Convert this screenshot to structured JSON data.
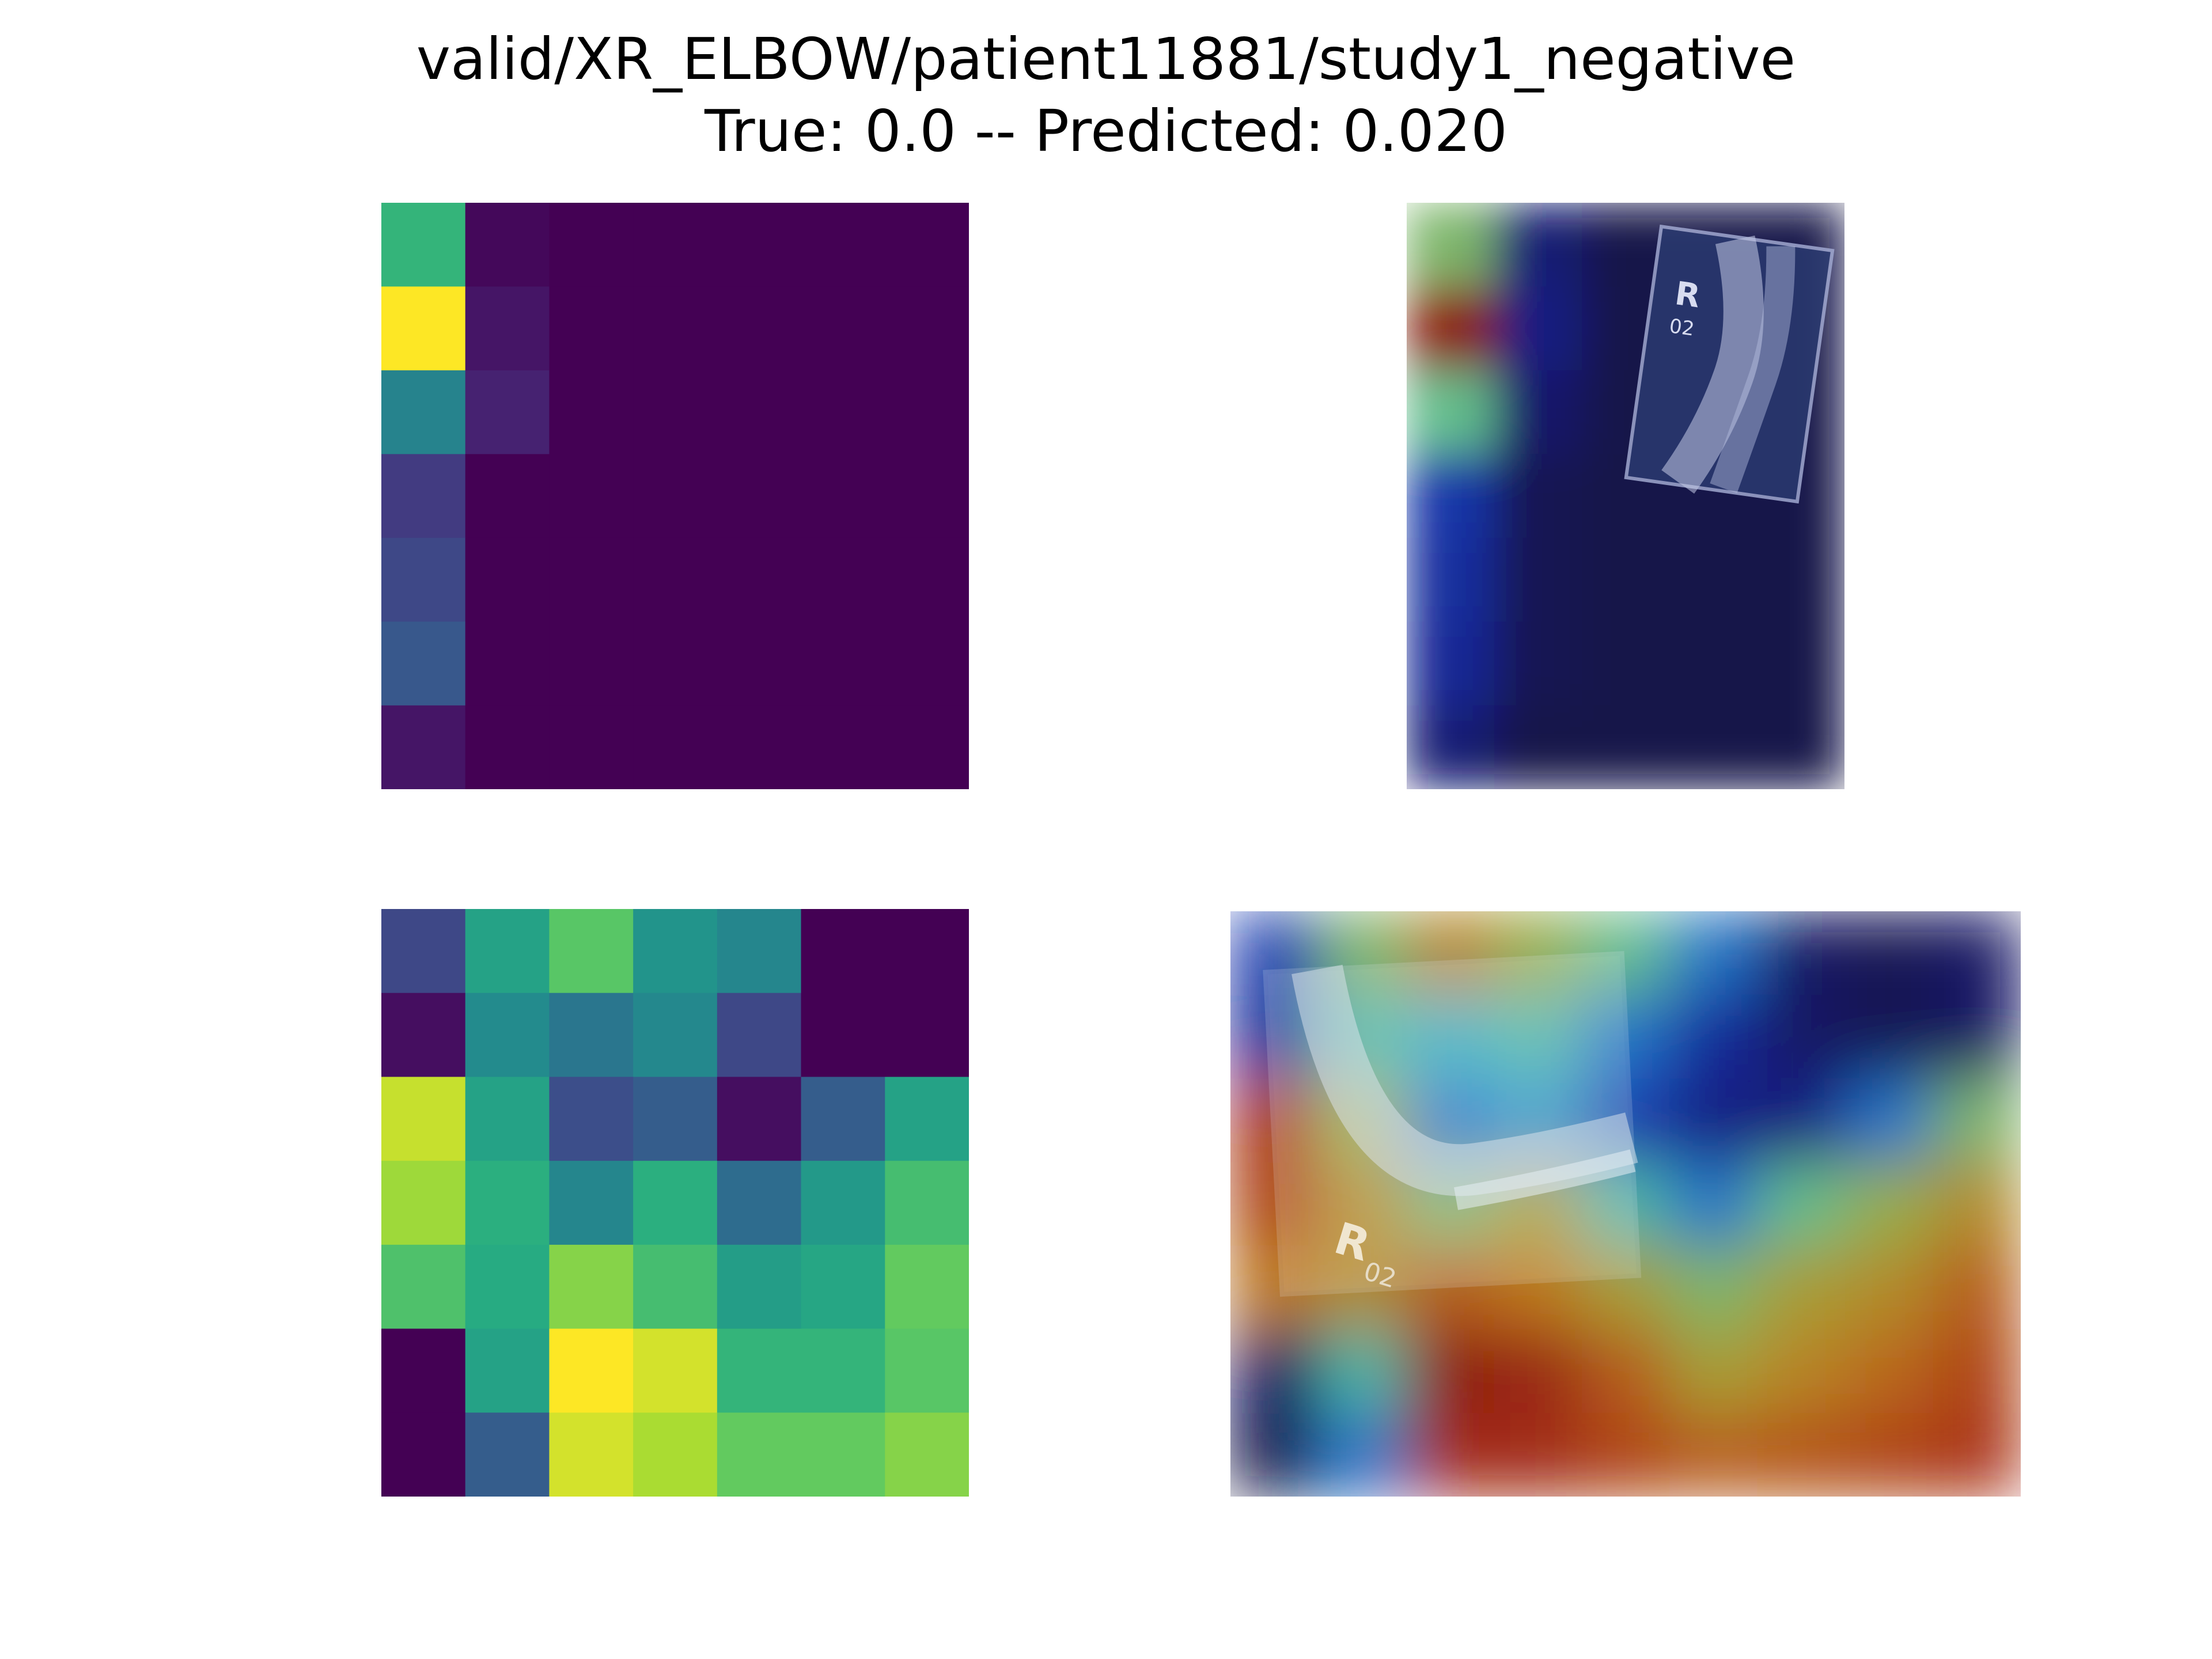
{
  "title": {
    "line1": "valid/XR_ELBOW/patient11881/study1_negative",
    "line2": "True: 0.0 -- Predicted: 0.020"
  },
  "colormaps": {
    "heatmap": "viridis",
    "overlay": "jet"
  },
  "overlay_labels": {
    "marker_letter": "R",
    "marker_number": "02"
  },
  "chart_data": [
    {
      "type": "heatmap",
      "name": "activation-map-top",
      "rows": 7,
      "cols": 7,
      "vmin": 0,
      "vmax": 1,
      "values": [
        [
          0.66,
          0.02,
          0.0,
          0.0,
          0.0,
          0.0,
          0.0
        ],
        [
          1.0,
          0.06,
          0.0,
          0.0,
          0.0,
          0.0,
          0.0
        ],
        [
          0.45,
          0.1,
          0.0,
          0.0,
          0.0,
          0.0,
          0.0
        ],
        [
          0.18,
          0.0,
          0.0,
          0.0,
          0.0,
          0.0,
          0.0
        ],
        [
          0.22,
          0.0,
          0.0,
          0.0,
          0.0,
          0.0,
          0.0
        ],
        [
          0.28,
          0.0,
          0.0,
          0.0,
          0.0,
          0.0,
          0.0
        ],
        [
          0.06,
          0.0,
          0.0,
          0.0,
          0.0,
          0.0,
          0.0
        ]
      ]
    },
    {
      "type": "heatmap",
      "name": "activation-map-bottom",
      "rows": 7,
      "cols": 7,
      "vmin": 0,
      "vmax": 1,
      "values": [
        [
          0.22,
          0.58,
          0.74,
          0.52,
          0.46,
          0.0,
          0.0
        ],
        [
          0.04,
          0.48,
          0.4,
          0.47,
          0.22,
          0.0,
          0.0
        ],
        [
          0.92,
          0.58,
          0.24,
          0.3,
          0.04,
          0.3,
          0.58
        ],
        [
          0.86,
          0.64,
          0.46,
          0.64,
          0.36,
          0.54,
          0.7
        ],
        [
          0.72,
          0.62,
          0.82,
          0.7,
          0.56,
          0.6,
          0.76
        ],
        [
          0.0,
          0.58,
          1.0,
          0.94,
          0.66,
          0.66,
          0.74
        ],
        [
          0.0,
          0.3,
          0.94,
          0.88,
          0.76,
          0.76,
          0.82
        ]
      ]
    },
    {
      "type": "heatmap",
      "name": "overlay-grid-top",
      "colormap": "jet",
      "rows": 7,
      "cols": 5,
      "values": [
        [
          0.55,
          0.08,
          0.0,
          0.0,
          0.0
        ],
        [
          0.95,
          0.1,
          0.0,
          0.0,
          0.0
        ],
        [
          0.5,
          0.06,
          0.0,
          0.0,
          0.0
        ],
        [
          0.18,
          0.02,
          0.0,
          0.0,
          0.0
        ],
        [
          0.16,
          0.02,
          0.0,
          0.0,
          0.0
        ],
        [
          0.14,
          0.02,
          0.0,
          0.0,
          0.0
        ],
        [
          0.08,
          0.0,
          0.0,
          0.0,
          0.0
        ]
      ]
    },
    {
      "type": "heatmap",
      "name": "overlay-grid-bottom",
      "colormap": "jet",
      "rows": 7,
      "cols": 9,
      "values": [
        [
          0.2,
          0.55,
          0.72,
          0.6,
          0.5,
          0.3,
          0.05,
          0.02,
          0.05
        ],
        [
          0.15,
          0.45,
          0.4,
          0.45,
          0.3,
          0.15,
          0.05,
          0.02,
          0.05
        ],
        [
          0.88,
          0.6,
          0.3,
          0.35,
          0.2,
          0.1,
          0.1,
          0.3,
          0.55
        ],
        [
          0.85,
          0.7,
          0.55,
          0.65,
          0.45,
          0.3,
          0.5,
          0.6,
          0.7
        ],
        [
          0.75,
          0.7,
          0.8,
          0.75,
          0.65,
          0.55,
          0.65,
          0.7,
          0.8
        ],
        [
          0.05,
          0.45,
          0.95,
          0.92,
          0.8,
          0.65,
          0.72,
          0.78,
          0.85
        ],
        [
          0.0,
          0.3,
          0.9,
          0.9,
          0.85,
          0.8,
          0.82,
          0.85,
          0.88
        ]
      ]
    }
  ]
}
